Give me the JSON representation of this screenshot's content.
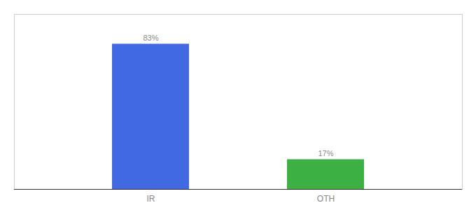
{
  "chart_data": {
    "type": "bar",
    "categories": [
      "IR",
      "OTH"
    ],
    "values": [
      83,
      17
    ],
    "value_labels": [
      "83%",
      "17%"
    ],
    "colors": [
      "#4169e1",
      "#3cb043"
    ],
    "ylim": [
      0,
      100
    ],
    "data_labels": true,
    "tick_labels": "x"
  }
}
